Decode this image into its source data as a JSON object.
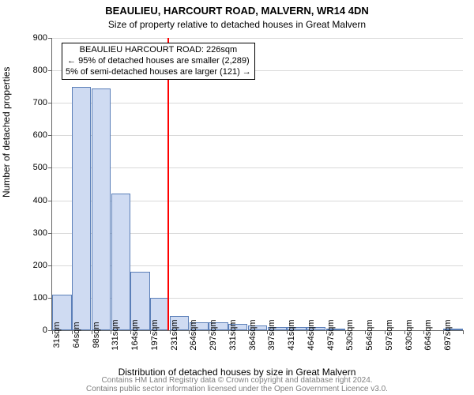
{
  "title": "BEAULIEU, HARCOURT ROAD, MALVERN, WR14 4DN",
  "subtitle": "Size of property relative to detached houses in Great Malvern",
  "ylabel": "Number of detached properties",
  "xlabel": "Distribution of detached houses by size in Great Malvern",
  "footer_line1": "Contains HM Land Registry data © Crown copyright and database right 2024.",
  "footer_line2": "Contains public sector information licensed under the Open Government Licence v3.0.",
  "annotation": {
    "line1": "BEAULIEU HARCOURT ROAD: 226sqm",
    "line2": "← 95% of detached houses are smaller (2,289)",
    "line3": "5% of semi-detached houses are larger (121) →",
    "fontsize": 11
  },
  "chart": {
    "type": "histogram",
    "ylim": [
      0,
      900
    ],
    "ytick_step": 100,
    "background_color": "#ffffff",
    "grid_color": "#d9d9d9",
    "bar_fill": "#cfdbf2",
    "bar_border": "#5b7fb8",
    "marker_line_color": "#ff0000",
    "marker_position": 226,
    "axis_fontsize": 12,
    "tick_fontsize": 11,
    "title_fontsize": 13,
    "subtitle_fontsize": 12,
    "footer_fontsize": 10,
    "bar_width_ratio": 0.98,
    "categories": [
      "31sqm",
      "64sqm",
      "98sqm",
      "131sqm",
      "164sqm",
      "197sqm",
      "231sqm",
      "264sqm",
      "297sqm",
      "331sqm",
      "364sqm",
      "397sqm",
      "431sqm",
      "464sqm",
      "497sqm",
      "530sqm",
      "564sqm",
      "597sqm",
      "630sqm",
      "664sqm",
      "697sqm"
    ],
    "values": [
      110,
      750,
      745,
      420,
      180,
      100,
      45,
      25,
      25,
      20,
      15,
      10,
      10,
      10,
      5,
      0,
      0,
      0,
      0,
      0,
      5
    ]
  }
}
